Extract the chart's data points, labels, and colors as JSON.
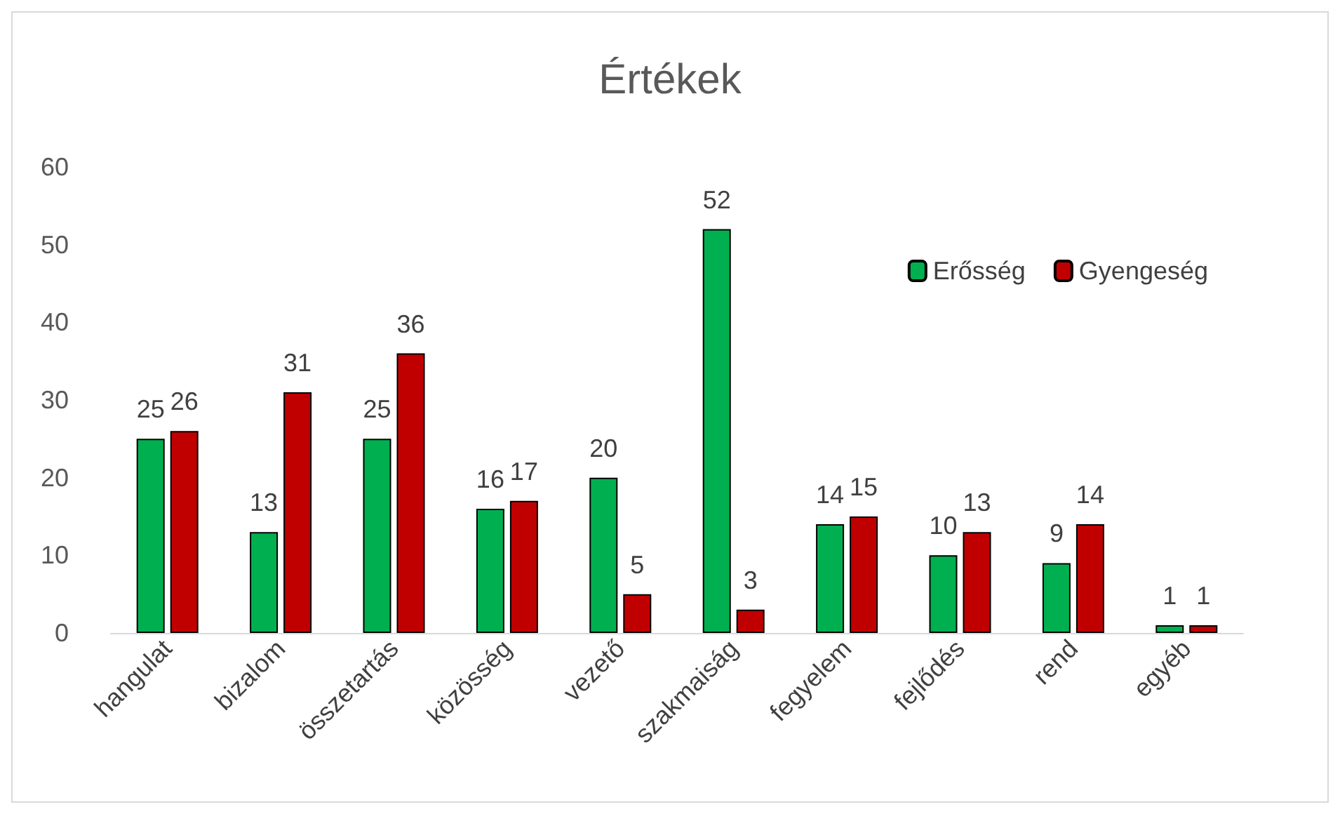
{
  "chart_data": {
    "type": "bar",
    "title": "Értékek",
    "categories": [
      "hangulat",
      "bizalom",
      "összetartás",
      "közösség",
      "vezető",
      "szakmaiság",
      "fegyelem",
      "fejlődés",
      "rend",
      "egyéb"
    ],
    "series": [
      {
        "name": "Erősség",
        "color": "#00b050",
        "values": [
          25,
          13,
          25,
          16,
          20,
          52,
          14,
          10,
          9,
          1
        ]
      },
      {
        "name": "Gyengeség",
        "color": "#c00000",
        "values": [
          26,
          31,
          36,
          17,
          5,
          3,
          15,
          13,
          14,
          1
        ]
      }
    ],
    "ylim": [
      0,
      60
    ],
    "yticks": [
      0,
      10,
      20,
      30,
      40,
      50,
      60
    ],
    "grid": false,
    "legend": "top right",
    "data_labels": true
  }
}
